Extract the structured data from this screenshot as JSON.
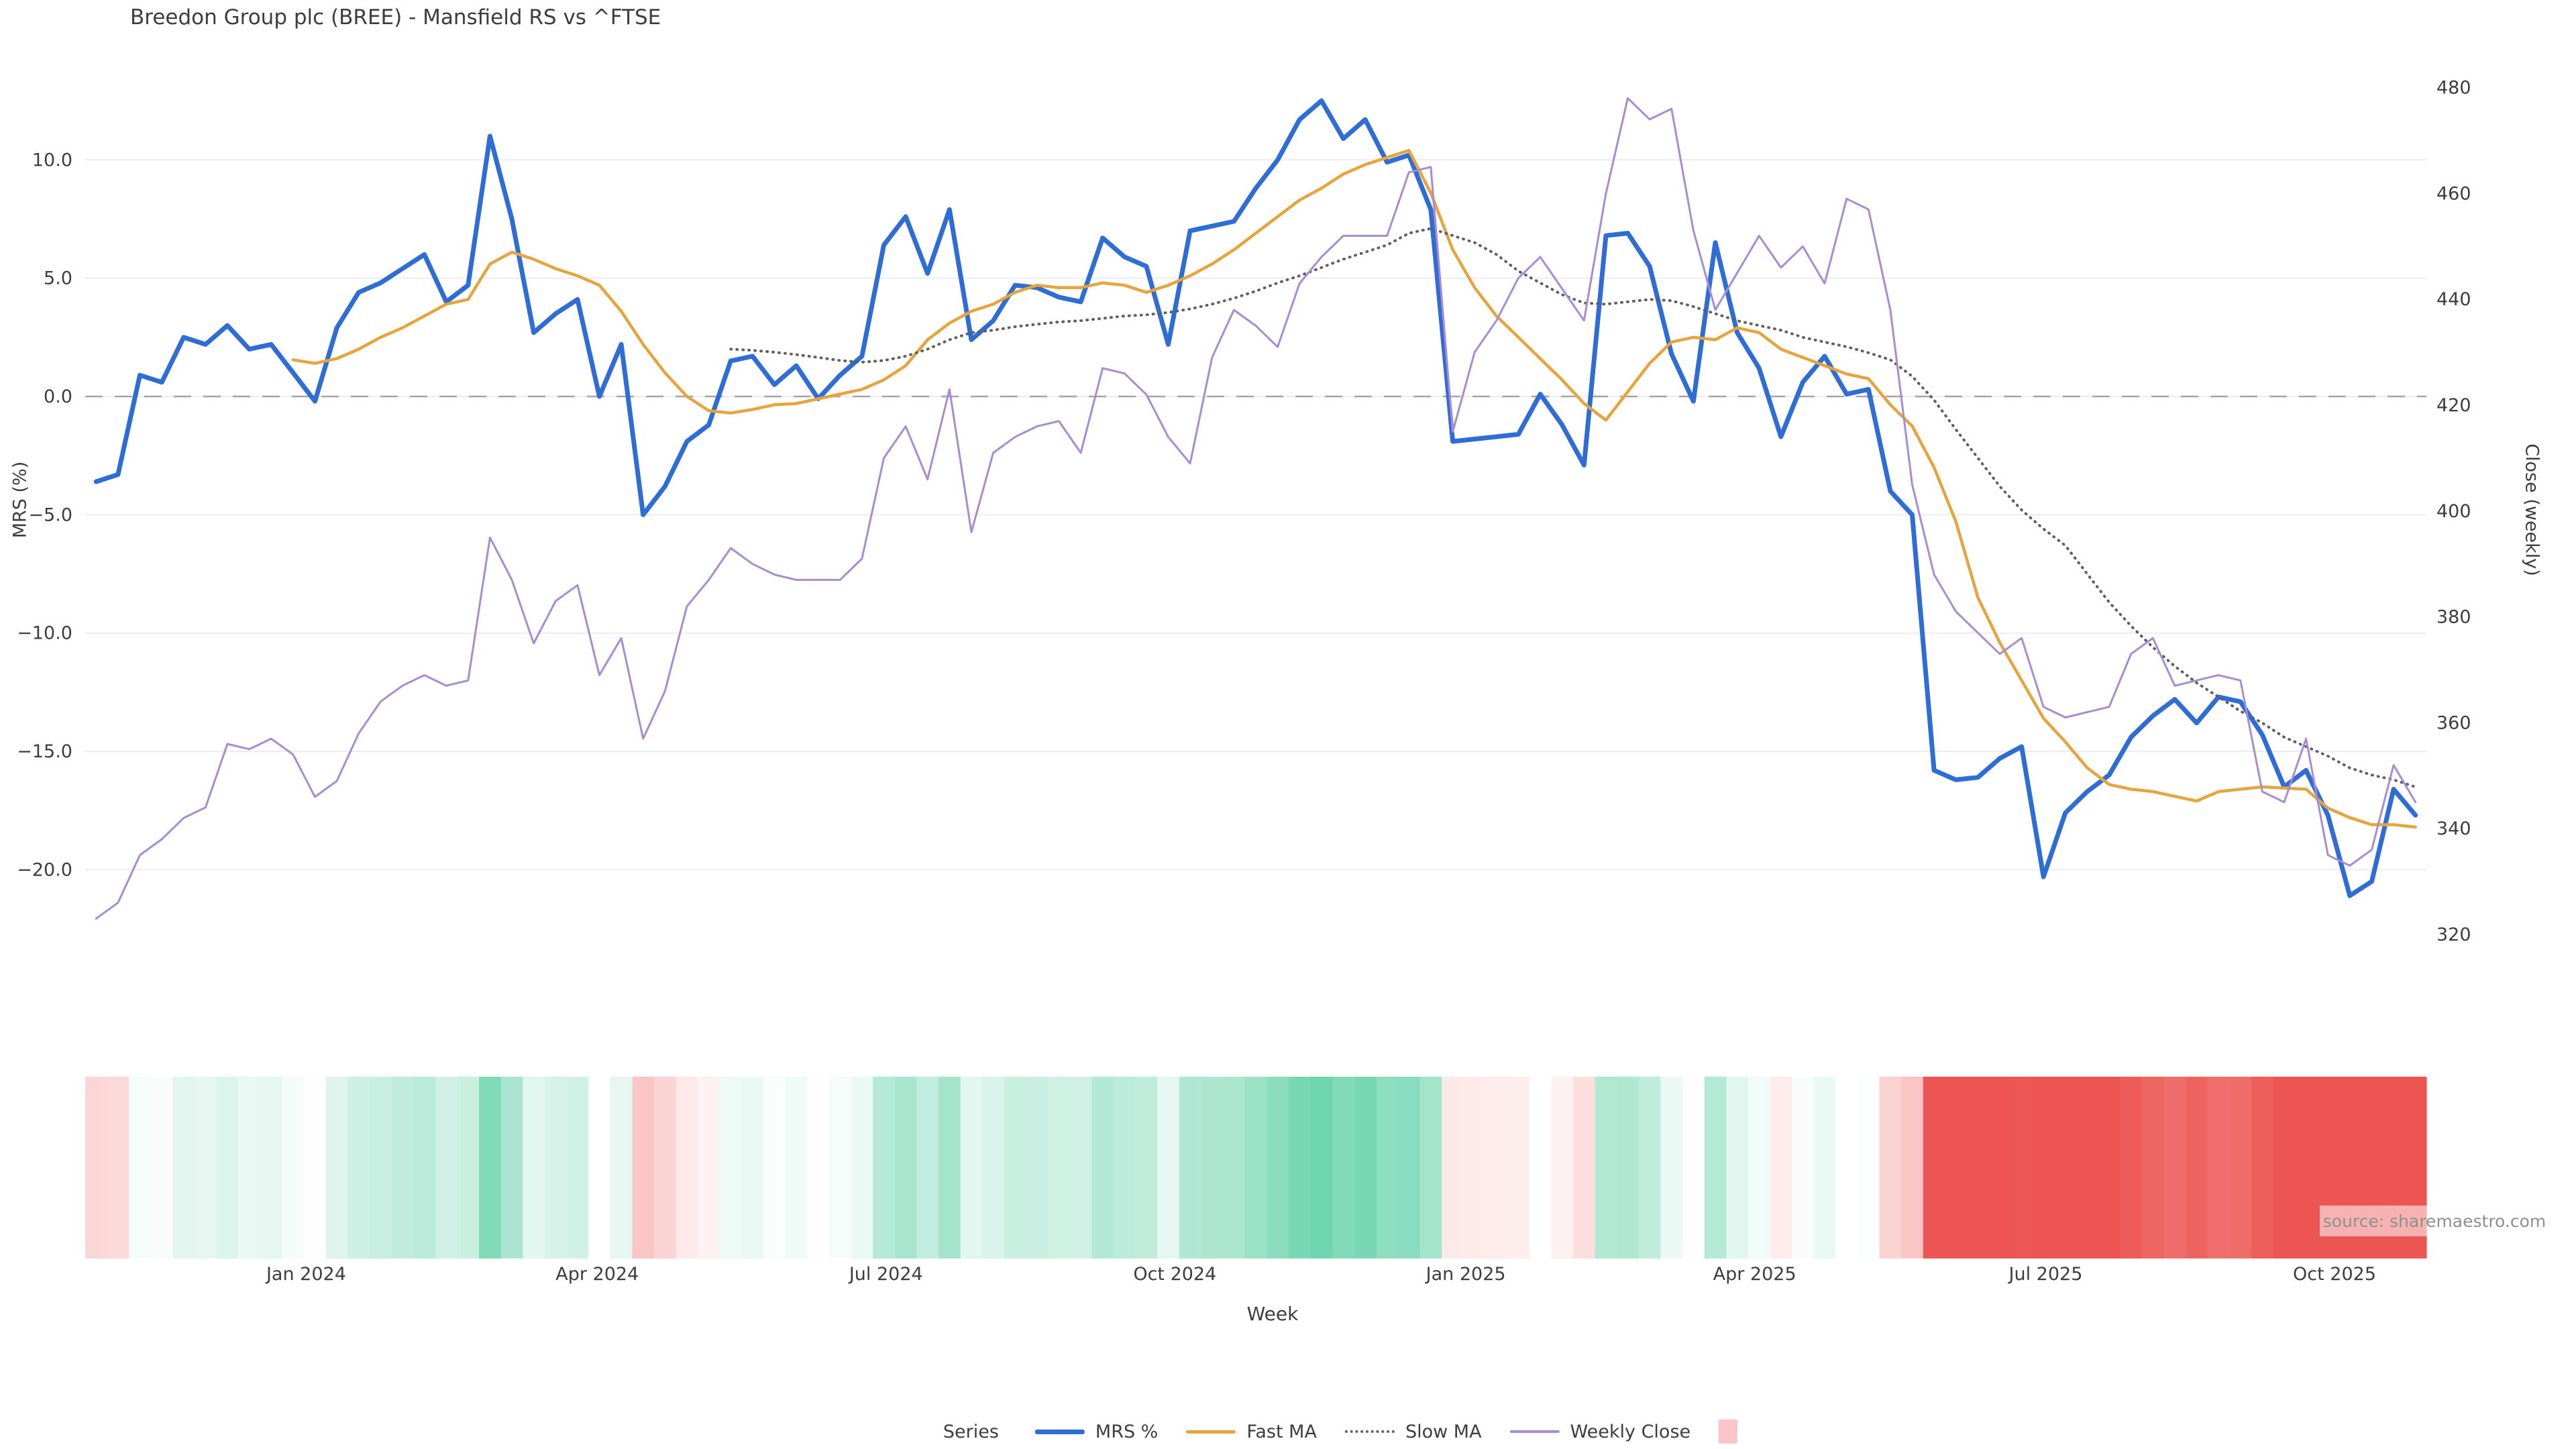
{
  "title": "Breedon Group plc (BREE) - Mansfield RS vs ^FTSE",
  "watermark": "source: sharemaestro.com",
  "axes": {
    "y_left": {
      "label": "MRS (%)",
      "ticks": [
        10.0,
        5.0,
        0.0,
        -5.0,
        -10.0,
        -15.0,
        -20.0
      ],
      "tick_labels": [
        "10.0",
        "5.0",
        "0.0",
        "−5.0",
        "−10.0",
        "−15.0",
        "−20.0"
      ],
      "range": [
        -23.5,
        13.6
      ],
      "grid": true
    },
    "y_right": {
      "label": "Close (weekly)",
      "ticks": [
        480,
        460,
        440,
        420,
        400,
        380,
        360,
        340,
        320
      ],
      "tick_labels": [
        "480",
        "460",
        "440",
        "420",
        "400",
        "380",
        "360",
        "340",
        "320"
      ],
      "range": [
        318,
        481
      ],
      "grid": false
    },
    "x": {
      "label": "Week",
      "tick_labels": [
        "Jan 2024",
        "Apr 2024",
        "Jul 2024",
        "Oct 2024",
        "Jan 2025",
        "Apr 2025",
        "Jul 2025",
        "Oct 2025"
      ],
      "tick_indices": [
        9.6,
        22.9,
        36.1,
        49.3,
        62.6,
        75.8,
        89.1,
        102.3
      ]
    }
  },
  "legend": {
    "title": "Series",
    "position": "bottom-center",
    "items": [
      {
        "label": "MRS %",
        "swatch": "line",
        "color": "#2e6cd6",
        "thickness": 7
      },
      {
        "label": "Fast MA",
        "swatch": "line",
        "color": "#e7a33c",
        "thickness": 5
      },
      {
        "label": "Slow MA",
        "swatch": "dotted",
        "color": "#5f5f5f",
        "thickness": 4
      },
      {
        "label": "Weekly Close",
        "swatch": "line",
        "color": "#a88bd4",
        "thickness": 4
      },
      {
        "label": "",
        "swatch": "square",
        "color": "#f9c5c8",
        "thickness": 0
      }
    ]
  },
  "chart_data": {
    "type": "line",
    "x_unit": "week_index",
    "baseline": 0,
    "title": "Breedon Group plc (BREE) - Mansfield RS vs ^FTSE",
    "xlabel": "Week",
    "ylabel_left": "MRS (%)",
    "ylabel_right": "Close (weekly)",
    "colors": {
      "grid": "#ececf2",
      "zero_dash": "#a3a3ad",
      "text": "#3d3d3d"
    },
    "series": [
      {
        "name": "MRS %",
        "axis": "left",
        "color": "#2e6cd6",
        "width": 7,
        "dash": null,
        "values": [
          -3.6,
          -3.3,
          0.9,
          0.6,
          2.5,
          2.2,
          3.0,
          2.0,
          2.2,
          1.0,
          -0.2,
          2.9,
          4.4,
          4.8,
          5.4,
          6.0,
          4.0,
          4.7,
          11.0,
          7.5,
          2.7,
          3.5,
          4.1,
          0.0,
          2.2,
          -5.0,
          -3.8,
          -1.9,
          -1.2,
          1.5,
          1.7,
          0.5,
          1.3,
          -0.1,
          0.9,
          1.7,
          6.4,
          7.6,
          5.2,
          7.9,
          2.4,
          3.2,
          4.7,
          4.6,
          4.2,
          4.0,
          6.7,
          5.9,
          5.5,
          2.2,
          7.0,
          7.2,
          7.4,
          8.8,
          10.0,
          11.7,
          12.5,
          10.9,
          11.7,
          9.9,
          10.2,
          7.9,
          -1.9,
          -1.8,
          -1.7,
          -1.6,
          0.1,
          -1.2,
          -2.9,
          6.8,
          6.9,
          5.5,
          1.8,
          -0.2,
          6.5,
          2.7,
          1.2,
          -1.7,
          0.6,
          1.7,
          0.1,
          0.3,
          -4.0,
          -5.0,
          -15.8,
          -16.2,
          -16.1,
          -15.3,
          -14.8,
          -20.3,
          -17.6,
          -16.7,
          -16.0,
          -14.4,
          -13.5,
          -12.8,
          -13.8,
          -12.7,
          -12.9,
          -14.3,
          -16.5,
          -15.8,
          -17.7,
          -21.1,
          -20.5,
          -16.6,
          -17.7
        ]
      },
      {
        "name": "Fast MA",
        "axis": "left",
        "color": "#e7a33c",
        "width": 4.5,
        "dash": null,
        "values": [
          null,
          null,
          null,
          null,
          null,
          null,
          null,
          null,
          null,
          1.55,
          1.4,
          1.6,
          2.0,
          2.5,
          2.9,
          3.4,
          3.9,
          4.1,
          5.6,
          6.1,
          5.8,
          5.4,
          5.1,
          4.7,
          3.6,
          2.2,
          1.0,
          0.0,
          -0.6,
          -0.7,
          -0.55,
          -0.35,
          -0.3,
          -0.1,
          0.1,
          0.3,
          0.7,
          1.3,
          2.4,
          3.1,
          3.6,
          3.9,
          4.4,
          4.7,
          4.6,
          4.6,
          4.8,
          4.7,
          4.4,
          4.7,
          5.1,
          5.6,
          6.2,
          6.9,
          7.6,
          8.3,
          8.8,
          9.4,
          9.8,
          10.1,
          10.4,
          8.6,
          6.2,
          4.6,
          3.4,
          2.5,
          1.6,
          0.7,
          -0.3,
          -1.0,
          0.2,
          1.4,
          2.3,
          2.5,
          2.4,
          2.9,
          2.7,
          2.0,
          1.65,
          1.3,
          0.95,
          0.75,
          -0.35,
          -1.25,
          -3.0,
          -5.3,
          -8.5,
          -10.4,
          -12.0,
          -13.6,
          -14.6,
          -15.7,
          -16.4,
          -16.6,
          -16.7,
          -16.9,
          -17.1,
          -16.7,
          -16.6,
          -16.5,
          -16.55,
          -16.6,
          -17.4,
          -17.8,
          -18.1,
          -18.1,
          -18.2
        ]
      },
      {
        "name": "Slow MA",
        "axis": "left",
        "color": "#5f5f5f",
        "width": 4,
        "dash": "1 8",
        "values": [
          null,
          null,
          null,
          null,
          null,
          null,
          null,
          null,
          null,
          null,
          null,
          null,
          null,
          null,
          null,
          null,
          null,
          null,
          null,
          null,
          null,
          null,
          null,
          null,
          null,
          null,
          null,
          null,
          null,
          2.0,
          1.95,
          1.87,
          1.77,
          1.65,
          1.52,
          1.45,
          1.52,
          1.7,
          2.0,
          2.4,
          2.7,
          2.8,
          2.95,
          3.05,
          3.15,
          3.2,
          3.3,
          3.4,
          3.45,
          3.55,
          3.7,
          3.9,
          4.15,
          4.45,
          4.8,
          5.1,
          5.45,
          5.8,
          6.1,
          6.4,
          6.9,
          7.1,
          6.8,
          6.5,
          6.0,
          5.3,
          4.8,
          4.3,
          3.95,
          3.9,
          4.0,
          4.1,
          4.05,
          3.8,
          3.5,
          3.2,
          3.0,
          2.8,
          2.5,
          2.3,
          2.1,
          1.85,
          1.55,
          0.85,
          -0.15,
          -1.4,
          -2.6,
          -3.8,
          -4.8,
          -5.6,
          -6.3,
          -7.5,
          -8.7,
          -9.7,
          -10.6,
          -11.4,
          -12.1,
          -12.7,
          -13.3,
          -13.8,
          -14.4,
          -14.8,
          -15.2,
          -15.7,
          -16.0,
          -16.2,
          -16.5
        ]
      },
      {
        "name": "Weekly Close",
        "axis": "right",
        "color": "#a88bd4",
        "width": 3,
        "dash": null,
        "values": [
          323,
          326,
          335,
          338,
          342,
          344,
          356,
          355,
          357,
          354,
          346,
          349,
          358,
          364,
          367,
          369,
          367,
          368,
          395,
          387,
          375,
          383,
          386,
          369,
          376,
          357,
          366,
          382,
          387,
          393,
          390,
          388,
          387,
          387,
          387,
          391,
          410,
          416,
          406,
          423,
          396,
          411,
          414,
          416,
          417,
          411,
          427,
          426,
          422,
          414,
          409,
          429,
          438,
          435,
          431,
          443,
          448,
          452,
          452,
          452,
          464,
          465,
          415,
          430,
          436,
          444,
          448,
          442,
          436,
          460,
          478,
          474,
          476,
          453,
          438,
          445,
          452,
          446,
          450,
          443,
          459,
          457,
          438,
          405,
          388,
          381,
          377,
          373,
          376,
          363,
          361,
          362,
          363,
          373,
          376,
          367,
          368,
          369,
          368,
          347,
          345,
          357,
          335,
          333,
          336,
          352,
          345
        ]
      }
    ],
    "heatmap": {
      "based_on": "MRS %",
      "positive_color": "#6fd4b0",
      "negative_color": "#ec5551",
      "neutral_color": "#ffffff",
      "positive_saturation_at": 12.5,
      "negative_saturation_at": 15
    }
  }
}
